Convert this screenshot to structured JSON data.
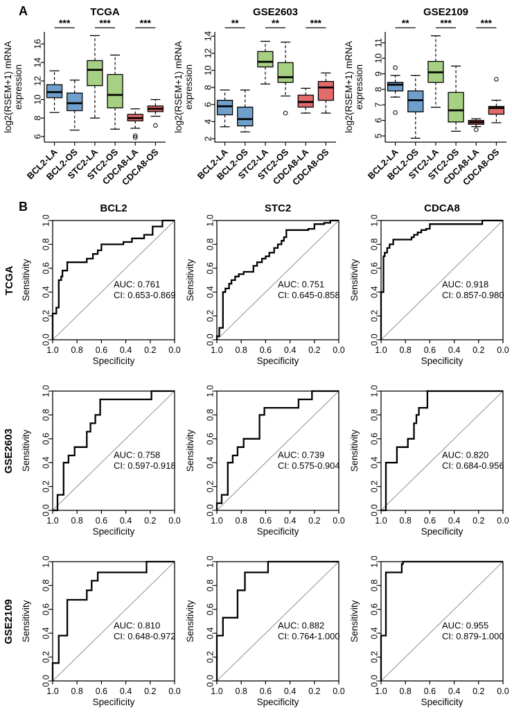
{
  "panels": {
    "a_label": "A",
    "b_label": "B"
  },
  "colors": {
    "box_blue": "#6f9fca",
    "box_green": "#a6d183",
    "box_red": "#e16a6a",
    "box_stroke": "#000000",
    "roc_line": "#000000",
    "diagonal": "#999999"
  },
  "panel_b": {
    "row_labels": [
      "TCGA",
      "GSE2603",
      "GSE2109"
    ],
    "col_titles": [
      "BCL2",
      "STC2",
      "CDCA8"
    ],
    "xlabel": "Specificity",
    "ylabel": "Sensitivity",
    "xticks": [
      "1.0",
      "0.8",
      "0.6",
      "0.4",
      "0.2",
      "0.0"
    ],
    "yticks": [
      "0.0",
      "0.2",
      "0.4",
      "0.6",
      "0.8",
      "1.0"
    ]
  },
  "chart_data": [
    {
      "type": "boxplot",
      "title": "TCGA",
      "ylabel_line1": "log2(RSEM+1) mRNA",
      "ylabel_line2": "expression",
      "ylim": [
        5.4,
        17.3
      ],
      "yticks": [
        6,
        8,
        10,
        12,
        14,
        16
      ],
      "categories": [
        "BCL2-LA",
        "BCL2-OS",
        "STC2-LA",
        "STC2-OS",
        "CDCA8-LA",
        "CDCA8-OS"
      ],
      "colors": [
        "#6f9fca",
        "#6f9fca",
        "#a6d183",
        "#a6d183",
        "#e16a6a",
        "#e16a6a"
      ],
      "boxes": [
        {
          "low": 8.6,
          "q1": 10.2,
          "median": 10.8,
          "q3": 11.6,
          "high": 13.1,
          "outliers": []
        },
        {
          "low": 6.7,
          "q1": 8.8,
          "median": 9.6,
          "q3": 10.7,
          "high": 12.1,
          "outliers": []
        },
        {
          "low": 8.0,
          "q1": 11.5,
          "median": 13.2,
          "q3": 14.2,
          "high": 16.9,
          "outliers": []
        },
        {
          "low": 6.8,
          "q1": 9.1,
          "median": 10.5,
          "q3": 12.7,
          "high": 14.8,
          "outliers": []
        },
        {
          "low": 6.9,
          "q1": 7.7,
          "median": 8.0,
          "q3": 8.4,
          "high": 9.0,
          "outliers": [
            6.1,
            5.9
          ]
        },
        {
          "low": 8.2,
          "q1": 8.7,
          "median": 9.0,
          "q3": 9.3,
          "high": 10.0,
          "outliers": [
            7.2
          ]
        }
      ],
      "significance": [
        "***",
        "***",
        "***"
      ]
    },
    {
      "type": "boxplot",
      "title": "GSE2603",
      "ylabel_line1": "log2(RSEM+1) mRNA",
      "ylabel_line2": "expression",
      "ylim": [
        1.6,
        14.5
      ],
      "yticks": [
        2,
        4,
        6,
        8,
        10,
        12,
        14
      ],
      "categories": [
        "BCL2-LA",
        "BCL2-OS",
        "STC2-LA",
        "STC2-OS",
        "CDCA8-LA",
        "CDCA8-OS"
      ],
      "colors": [
        "#6f9fca",
        "#6f9fca",
        "#a6d183",
        "#a6d183",
        "#e16a6a",
        "#e16a6a"
      ],
      "boxes": [
        {
          "low": 3.4,
          "q1": 4.8,
          "median": 5.8,
          "q3": 6.5,
          "high": 7.7,
          "outliers": []
        },
        {
          "low": 2.8,
          "q1": 3.5,
          "median": 4.3,
          "q3": 5.7,
          "high": 7.7,
          "outliers": []
        },
        {
          "low": 8.4,
          "q1": 10.4,
          "median": 11.0,
          "q3": 12.2,
          "high": 13.4,
          "outliers": []
        },
        {
          "low": 7.0,
          "q1": 8.6,
          "median": 9.2,
          "q3": 10.9,
          "high": 13.3,
          "outliers": [
            5.0
          ]
        },
        {
          "low": 5.0,
          "q1": 5.7,
          "median": 6.3,
          "q3": 7.1,
          "high": 7.9,
          "outliers": []
        },
        {
          "low": 5.0,
          "q1": 6.5,
          "median": 8.0,
          "q3": 8.7,
          "high": 9.7,
          "outliers": []
        }
      ],
      "significance": [
        "**",
        "**",
        "***"
      ]
    },
    {
      "type": "boxplot",
      "title": "GSE2109",
      "ylabel_line1": "log2(RSEM+1) mRNA",
      "ylabel_line2": "expression",
      "ylim": [
        4.6,
        11.7
      ],
      "yticks": [
        5,
        6,
        7,
        8,
        9,
        10,
        11
      ],
      "categories": [
        "BCL2-LA",
        "BCL2-OS",
        "STC2-LA",
        "STC2-OS",
        "CDCA8-LA",
        "CDCA8-OS"
      ],
      "colors": [
        "#6f9fca",
        "#6f9fca",
        "#a6d183",
        "#a6d183",
        "#e16a6a",
        "#e16a6a"
      ],
      "boxes": [
        {
          "low": 7.5,
          "q1": 7.9,
          "median": 8.3,
          "q3": 8.45,
          "high": 8.9,
          "outliers": [
            9.4,
            6.5
          ]
        },
        {
          "low": 4.85,
          "q1": 6.55,
          "median": 7.3,
          "q3": 7.9,
          "high": 8.9,
          "outliers": []
        },
        {
          "low": 6.85,
          "q1": 8.45,
          "median": 9.1,
          "q3": 9.8,
          "high": 11.45,
          "outliers": []
        },
        {
          "low": 5.3,
          "q1": 5.9,
          "median": 6.65,
          "q3": 7.8,
          "high": 9.5,
          "outliers": []
        },
        {
          "low": 5.6,
          "q1": 5.75,
          "median": 5.88,
          "q3": 6.0,
          "high": 6.1,
          "outliers": [
            5.4
          ]
        },
        {
          "low": 5.85,
          "q1": 6.4,
          "median": 6.8,
          "q3": 6.9,
          "high": 7.3,
          "outliers": [
            8.65
          ]
        }
      ],
      "significance": [
        "**",
        "***",
        "***"
      ]
    },
    {
      "type": "roc",
      "dataset": "TCGA",
      "gene": "BCL2",
      "auc_label": "AUC: 0.761",
      "ci_label": "CI: 0.653-0.869",
      "points": [
        [
          1.0,
          0
        ],
        [
          1.0,
          0.22
        ],
        [
          0.97,
          0.22
        ],
        [
          0.97,
          0.27
        ],
        [
          0.95,
          0.27
        ],
        [
          0.95,
          0.5
        ],
        [
          0.93,
          0.5
        ],
        [
          0.93,
          0.53
        ],
        [
          0.92,
          0.53
        ],
        [
          0.92,
          0.58
        ],
        [
          0.88,
          0.58
        ],
        [
          0.88,
          0.65
        ],
        [
          0.72,
          0.65
        ],
        [
          0.72,
          0.68
        ],
        [
          0.67,
          0.68
        ],
        [
          0.67,
          0.72
        ],
        [
          0.63,
          0.72
        ],
        [
          0.63,
          0.75
        ],
        [
          0.6,
          0.75
        ],
        [
          0.6,
          0.8
        ],
        [
          0.42,
          0.8
        ],
        [
          0.42,
          0.82
        ],
        [
          0.35,
          0.82
        ],
        [
          0.35,
          0.85
        ],
        [
          0.25,
          0.85
        ],
        [
          0.25,
          0.88
        ],
        [
          0.18,
          0.88
        ],
        [
          0.18,
          0.95
        ],
        [
          0.1,
          0.95
        ],
        [
          0.1,
          1.0
        ],
        [
          0,
          1.0
        ]
      ]
    },
    {
      "type": "roc",
      "dataset": "TCGA",
      "gene": "STC2",
      "auc_label": "AUC: 0.751",
      "ci_label": "CI: 0.645-0.858",
      "points": [
        [
          1.0,
          0
        ],
        [
          1.0,
          0.03
        ],
        [
          0.98,
          0.03
        ],
        [
          0.98,
          0.1
        ],
        [
          0.95,
          0.1
        ],
        [
          0.95,
          0.4
        ],
        [
          0.93,
          0.4
        ],
        [
          0.93,
          0.43
        ],
        [
          0.9,
          0.43
        ],
        [
          0.9,
          0.47
        ],
        [
          0.88,
          0.47
        ],
        [
          0.88,
          0.5
        ],
        [
          0.85,
          0.5
        ],
        [
          0.85,
          0.53
        ],
        [
          0.82,
          0.53
        ],
        [
          0.82,
          0.55
        ],
        [
          0.78,
          0.55
        ],
        [
          0.78,
          0.57
        ],
        [
          0.7,
          0.57
        ],
        [
          0.7,
          0.62
        ],
        [
          0.67,
          0.62
        ],
        [
          0.67,
          0.65
        ],
        [
          0.63,
          0.65
        ],
        [
          0.63,
          0.68
        ],
        [
          0.6,
          0.68
        ],
        [
          0.6,
          0.7
        ],
        [
          0.57,
          0.7
        ],
        [
          0.57,
          0.73
        ],
        [
          0.53,
          0.73
        ],
        [
          0.53,
          0.77
        ],
        [
          0.5,
          0.77
        ],
        [
          0.5,
          0.8
        ],
        [
          0.47,
          0.8
        ],
        [
          0.47,
          0.83
        ],
        [
          0.45,
          0.83
        ],
        [
          0.45,
          0.86
        ],
        [
          0.43,
          0.86
        ],
        [
          0.43,
          0.92
        ],
        [
          0.25,
          0.92
        ],
        [
          0.25,
          0.93
        ],
        [
          0.2,
          0.93
        ],
        [
          0.2,
          0.97
        ],
        [
          0.12,
          0.97
        ],
        [
          0.12,
          0.98
        ],
        [
          0.07,
          0.98
        ],
        [
          0.07,
          1.0
        ],
        [
          0,
          1.0
        ]
      ]
    },
    {
      "type": "roc",
      "dataset": "TCGA",
      "gene": "CDCA8",
      "auc_label": "AUC: 0.918",
      "ci_label": "CI: 0.857-0.980",
      "points": [
        [
          1.0,
          0
        ],
        [
          1.0,
          0.4
        ],
        [
          0.98,
          0.4
        ],
        [
          0.98,
          0.7
        ],
        [
          0.97,
          0.7
        ],
        [
          0.97,
          0.73
        ],
        [
          0.95,
          0.73
        ],
        [
          0.95,
          0.77
        ],
        [
          0.93,
          0.77
        ],
        [
          0.93,
          0.8
        ],
        [
          0.9,
          0.8
        ],
        [
          0.9,
          0.84
        ],
        [
          0.75,
          0.84
        ],
        [
          0.75,
          0.86
        ],
        [
          0.73,
          0.86
        ],
        [
          0.73,
          0.88
        ],
        [
          0.7,
          0.88
        ],
        [
          0.7,
          0.9
        ],
        [
          0.67,
          0.9
        ],
        [
          0.67,
          0.92
        ],
        [
          0.63,
          0.92
        ],
        [
          0.63,
          0.93
        ],
        [
          0.6,
          0.93
        ],
        [
          0.6,
          0.97
        ],
        [
          0.17,
          0.97
        ],
        [
          0.17,
          1.0
        ],
        [
          0,
          1.0
        ]
      ]
    },
    {
      "type": "roc",
      "dataset": "GSE2603",
      "gene": "BCL2",
      "auc_label": "AUC: 0.758",
      "ci_label": "CI: 0.597-0.918",
      "points": [
        [
          1.0,
          0
        ],
        [
          0.96,
          0
        ],
        [
          0.96,
          0.13
        ],
        [
          0.91,
          0.13
        ],
        [
          0.91,
          0.4
        ],
        [
          0.87,
          0.4
        ],
        [
          0.87,
          0.46
        ],
        [
          0.82,
          0.46
        ],
        [
          0.82,
          0.53
        ],
        [
          0.72,
          0.53
        ],
        [
          0.72,
          0.66
        ],
        [
          0.69,
          0.66
        ],
        [
          0.69,
          0.73
        ],
        [
          0.65,
          0.73
        ],
        [
          0.65,
          0.8
        ],
        [
          0.61,
          0.8
        ],
        [
          0.61,
          0.93
        ],
        [
          0.19,
          0.93
        ],
        [
          0.19,
          1.0
        ],
        [
          0,
          1.0
        ]
      ]
    },
    {
      "type": "roc",
      "dataset": "GSE2603",
      "gene": "STC2",
      "auc_label": "AUC: 0.739",
      "ci_label": "CI: 0.575-0.904",
      "points": [
        [
          1.0,
          0
        ],
        [
          1.0,
          0.06
        ],
        [
          0.96,
          0.06
        ],
        [
          0.96,
          0.13
        ],
        [
          0.91,
          0.13
        ],
        [
          0.91,
          0.4
        ],
        [
          0.87,
          0.4
        ],
        [
          0.87,
          0.46
        ],
        [
          0.83,
          0.46
        ],
        [
          0.83,
          0.53
        ],
        [
          0.78,
          0.53
        ],
        [
          0.78,
          0.6
        ],
        [
          0.65,
          0.6
        ],
        [
          0.65,
          0.8
        ],
        [
          0.61,
          0.8
        ],
        [
          0.61,
          0.86
        ],
        [
          0.33,
          0.86
        ],
        [
          0.33,
          0.93
        ],
        [
          0.22,
          0.93
        ],
        [
          0.22,
          1.0
        ],
        [
          0,
          1.0
        ]
      ]
    },
    {
      "type": "roc",
      "dataset": "GSE2603",
      "gene": "CDCA8",
      "auc_label": "AUC: 0.820",
      "ci_label": "CI: 0.684-0.956",
      "points": [
        [
          1.0,
          0
        ],
        [
          0.96,
          0
        ],
        [
          0.96,
          0.4
        ],
        [
          0.87,
          0.4
        ],
        [
          0.87,
          0.53
        ],
        [
          0.78,
          0.53
        ],
        [
          0.78,
          0.6
        ],
        [
          0.73,
          0.6
        ],
        [
          0.73,
          0.73
        ],
        [
          0.71,
          0.73
        ],
        [
          0.71,
          0.8
        ],
        [
          0.69,
          0.8
        ],
        [
          0.69,
          0.86
        ],
        [
          0.62,
          0.86
        ],
        [
          0.62,
          1.0
        ],
        [
          0,
          1.0
        ]
      ]
    },
    {
      "type": "roc",
      "dataset": "GSE2109",
      "gene": "BCL2",
      "auc_label": "AUC: 0.810",
      "ci_label": "CI: 0.648-0.972",
      "points": [
        [
          1.0,
          0
        ],
        [
          1.0,
          0.15
        ],
        [
          0.95,
          0.15
        ],
        [
          0.95,
          0.38
        ],
        [
          0.88,
          0.38
        ],
        [
          0.88,
          0.68
        ],
        [
          0.72,
          0.68
        ],
        [
          0.72,
          0.76
        ],
        [
          0.68,
          0.76
        ],
        [
          0.68,
          0.84
        ],
        [
          0.63,
          0.84
        ],
        [
          0.63,
          0.91
        ],
        [
          0.23,
          0.91
        ],
        [
          0.23,
          1.0
        ],
        [
          0,
          1.0
        ]
      ]
    },
    {
      "type": "roc",
      "dataset": "GSE2109",
      "gene": "STC2",
      "auc_label": "AUC: 0.882",
      "ci_label": "CI: 0.764-1.000",
      "points": [
        [
          1.0,
          0
        ],
        [
          1.0,
          0.38
        ],
        [
          0.95,
          0.38
        ],
        [
          0.95,
          0.53
        ],
        [
          0.83,
          0.53
        ],
        [
          0.83,
          0.76
        ],
        [
          0.77,
          0.76
        ],
        [
          0.77,
          0.91
        ],
        [
          0.58,
          0.91
        ],
        [
          0.58,
          1.0
        ],
        [
          0,
          1.0
        ]
      ]
    },
    {
      "type": "roc",
      "dataset": "GSE2109",
      "gene": "CDCA8",
      "auc_label": "AUC: 0.955",
      "ci_label": "CI: 0.879-1.000",
      "points": [
        [
          1.0,
          0
        ],
        [
          1.0,
          0.38
        ],
        [
          0.96,
          0.38
        ],
        [
          0.96,
          0.91
        ],
        [
          0.83,
          0.91
        ],
        [
          0.83,
          0.98
        ],
        [
          0.82,
          0.98
        ],
        [
          0.82,
          1.0
        ],
        [
          0,
          1.0
        ]
      ]
    }
  ]
}
